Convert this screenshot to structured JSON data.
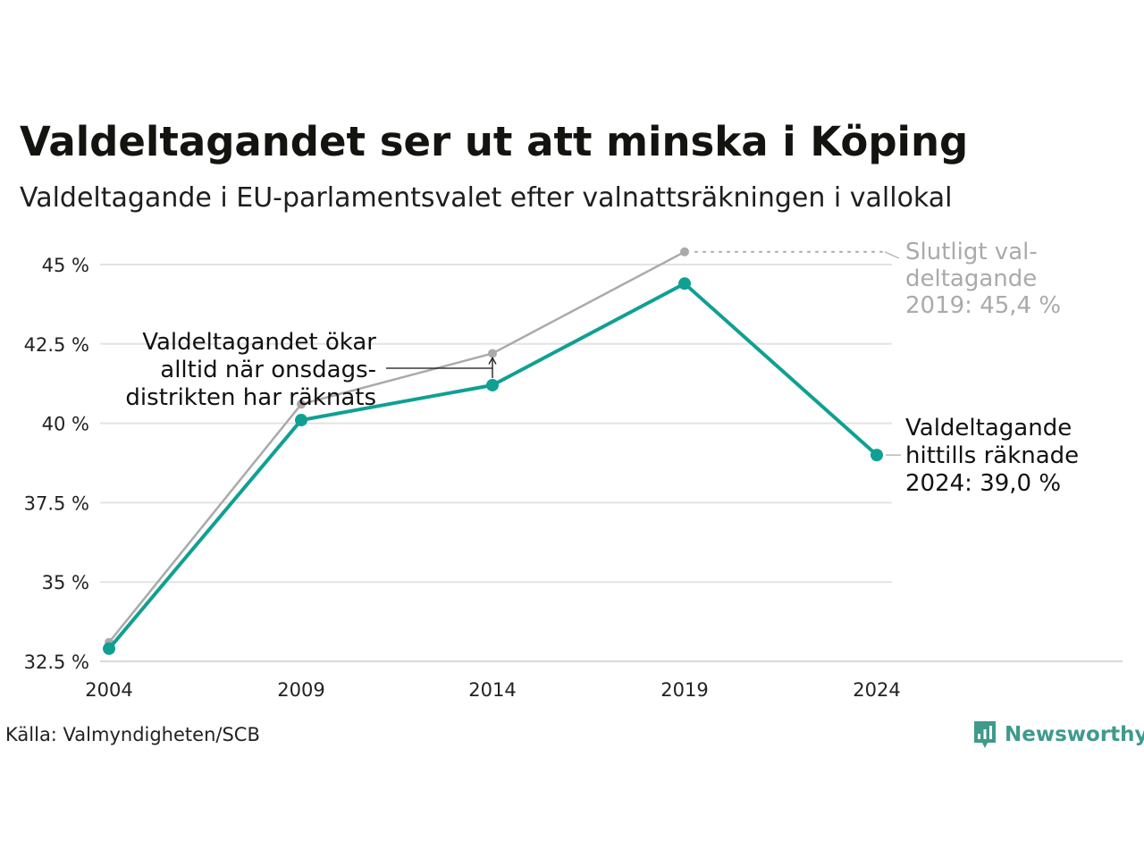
{
  "title": "Valdeltagandet ser ut att minska i Köping",
  "subtitle": "Valdeltagande i EU-parlamentsvalet efter valnattsräkningen i vallokal",
  "source": "Källa: Valmyndigheten/SCB",
  "brand": "Newsworthy",
  "colors": {
    "teal": "#0fa093",
    "gray": "#aaaaaa",
    "gridline": "#e3e3e3",
    "baseline": "#d9d9d9",
    "text": "#1a1a1a",
    "brand": "#3f9a8c"
  },
  "chart_data": {
    "type": "line",
    "x": [
      "2004",
      "2009",
      "2014",
      "2019",
      "2024"
    ],
    "ylim": [
      32.5,
      45
    ],
    "yticks": [
      32.5,
      35,
      37.5,
      40,
      42.5,
      45
    ],
    "ytick_labels": [
      "32.5 %",
      "35 %",
      "37.5 %",
      "40 %",
      "42.5 %",
      "45 %"
    ],
    "grid": true,
    "series": [
      {
        "key": "final",
        "color": "#aaaaaa",
        "values": [
          33.1,
          40.6,
          42.2,
          45.4,
          null
        ]
      },
      {
        "key": "election_night",
        "color": "#0fa093",
        "values": [
          32.9,
          40.1,
          41.2,
          44.4,
          39.0
        ]
      }
    ],
    "annotations": {
      "onsdag": [
        "Valdeltagandet ökar",
        "alltid när onsdags-",
        "distrikten har räknats"
      ],
      "final_2019": [
        "Slutligt val-",
        "deltagande",
        "2019: 45,4 %"
      ],
      "current_2024": [
        "Valdeltagande",
        "hittills räknade",
        "2024: 39,0 %"
      ]
    }
  }
}
